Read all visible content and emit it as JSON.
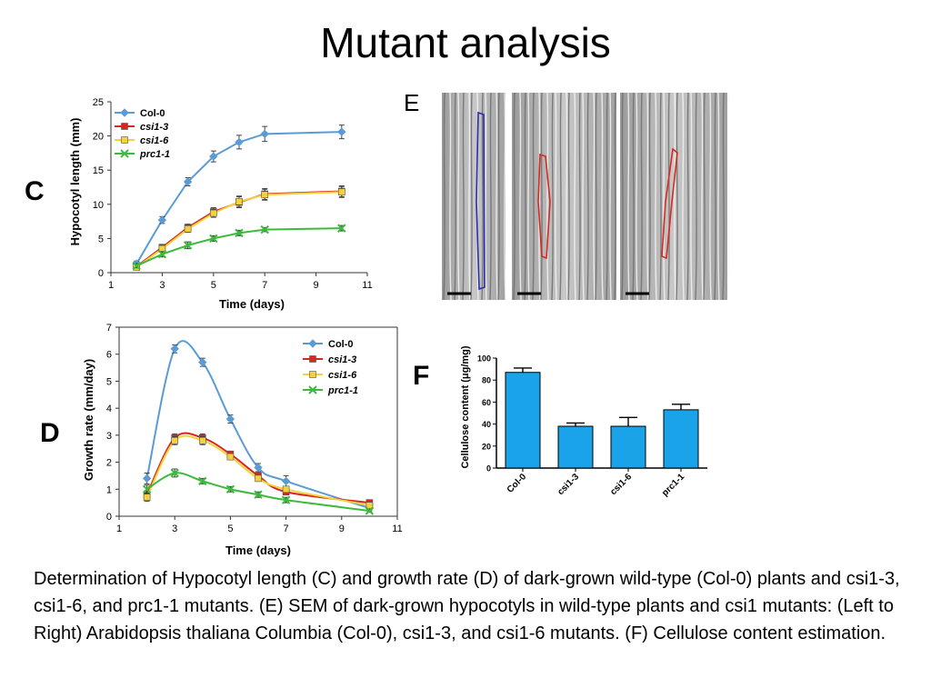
{
  "title": "Mutant analysis",
  "panel_labels": {
    "c": "C",
    "d": "D",
    "e": "E",
    "f": "F"
  },
  "caption": "Determination of Hypocotyl length (C) and growth rate (D) of dark-grown wild-type (Col-0) plants and csi1-3, csi1-6, and prc1-1 mutants. (E) SEM of dark-grown hypocotyls in wild-type plants and csi1 mutants: (Left to Right) Arabidopsis thaliana Columbia (Col-0), csi1-3, and csi1-6 mutants. (F) Cellulose content estimation.",
  "colors": {
    "col0": "#5b9bd5",
    "csi13": "#d7261e",
    "csi16": "#f5d23c",
    "prc11": "#3dba3d",
    "bar": "#1aa3e8"
  },
  "chart_data": [
    {
      "id": "C",
      "type": "line",
      "xlabel": "Time (days)",
      "ylabel": "Hypocotyl length (mm)",
      "xlim": [
        1,
        11
      ],
      "ylim": [
        0,
        25
      ],
      "xticks": [
        1,
        3,
        5,
        7,
        9,
        11
      ],
      "yticks": [
        0,
        5,
        10,
        15,
        20,
        25
      ],
      "legend_position": "top-left",
      "series": [
        {
          "name": "Col-0",
          "x": [
            2,
            3,
            4,
            5,
            6,
            7,
            10
          ],
          "values": [
            1.3,
            7.7,
            13.3,
            17.0,
            19.1,
            20.3,
            20.6
          ],
          "err": [
            0.4,
            0.5,
            0.6,
            0.8,
            1.0,
            1.1,
            1.0
          ]
        },
        {
          "name": "csi1-3",
          "x": [
            2,
            3,
            4,
            5,
            6,
            7,
            10
          ],
          "values": [
            0.9,
            3.7,
            6.6,
            8.9,
            10.3,
            11.5,
            11.9
          ],
          "err": [
            0.3,
            0.4,
            0.5,
            0.6,
            0.8,
            0.8,
            0.8
          ]
        },
        {
          "name": "csi1-6",
          "x": [
            2,
            3,
            4,
            5,
            6,
            7,
            10
          ],
          "values": [
            0.8,
            3.5,
            6.4,
            8.7,
            10.4,
            11.4,
            11.8
          ],
          "err": [
            0.3,
            0.4,
            0.5,
            0.6,
            0.8,
            0.8,
            0.8
          ]
        },
        {
          "name": "prc1-1",
          "x": [
            2,
            3,
            4,
            5,
            6,
            7,
            10
          ],
          "values": [
            1.0,
            2.7,
            4.0,
            5.0,
            5.8,
            6.3,
            6.5
          ],
          "err": [
            0.3,
            0.4,
            0.5,
            0.4,
            0.4,
            0.3,
            0.4
          ]
        }
      ]
    },
    {
      "id": "D",
      "type": "line",
      "xlabel": "Time (days)",
      "ylabel": "Growth rate (mm/day)",
      "xlim": [
        1,
        11
      ],
      "ylim": [
        0,
        7
      ],
      "xticks": [
        1,
        3,
        5,
        7,
        9,
        11
      ],
      "yticks": [
        0,
        1,
        2,
        3,
        4,
        5,
        6,
        7
      ],
      "legend_position": "top-right",
      "series": [
        {
          "name": "Col-0",
          "x": [
            2,
            3,
            4,
            5,
            6,
            7,
            10
          ],
          "values": [
            1.4,
            6.2,
            5.7,
            3.6,
            1.8,
            1.3,
            0.3
          ],
          "err": [
            0.2,
            0.15,
            0.15,
            0.15,
            0.15,
            0.2,
            0.1
          ]
        },
        {
          "name": "csi1-3",
          "x": [
            2,
            3,
            4,
            5,
            6,
            7,
            10
          ],
          "values": [
            0.8,
            2.9,
            2.9,
            2.3,
            1.5,
            0.9,
            0.5
          ],
          "err": [
            0.15,
            0.15,
            0.15,
            0.1,
            0.1,
            0.1,
            0.1
          ]
        },
        {
          "name": "csi1-6",
          "x": [
            2,
            3,
            4,
            5,
            6,
            7,
            10
          ],
          "values": [
            0.7,
            2.8,
            2.8,
            2.2,
            1.4,
            1.0,
            0.4
          ],
          "err": [
            0.15,
            0.15,
            0.15,
            0.1,
            0.1,
            0.1,
            0.1
          ]
        },
        {
          "name": "prc1-1",
          "x": [
            2,
            3,
            4,
            5,
            6,
            7,
            10
          ],
          "values": [
            1.0,
            1.6,
            1.3,
            1.0,
            0.8,
            0.6,
            0.2
          ],
          "err": [
            0.15,
            0.15,
            0.1,
            0.1,
            0.1,
            0.1,
            0.05
          ]
        }
      ]
    },
    {
      "id": "F",
      "type": "bar",
      "ylabel": "Cellulose content (μg/mg)",
      "ylim": [
        0,
        100
      ],
      "yticks": [
        0,
        20,
        40,
        60,
        80,
        100
      ],
      "categories": [
        "Col-0",
        "csi1-3",
        "csi1-6",
        "prc1-1"
      ],
      "values": [
        87,
        38,
        38,
        53
      ],
      "err": [
        4,
        3,
        8,
        5
      ]
    }
  ]
}
